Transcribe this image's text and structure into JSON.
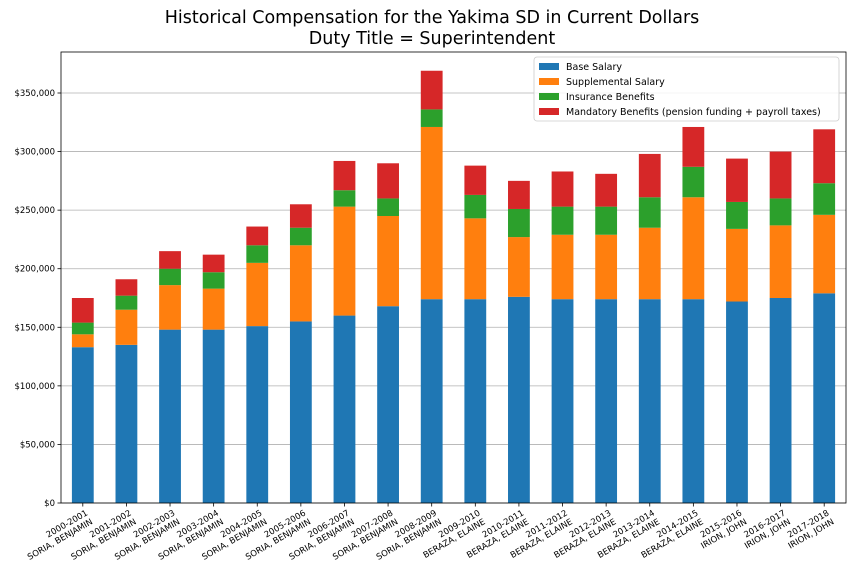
{
  "chart_data": {
    "type": "bar",
    "stacked": true,
    "title": "Historical Compensation for the Yakima SD in Current Dollars",
    "subtitle": "Duty Title = Superintendent",
    "xlabel": "",
    "ylabel": "",
    "ylim": [
      0,
      385000
    ],
    "yticks": [
      0,
      50000,
      100000,
      150000,
      200000,
      250000,
      300000,
      350000
    ],
    "ytick_labels": [
      "$0",
      "$50,000",
      "$100,000",
      "$150,000",
      "$200,000",
      "$250,000",
      "$300,000",
      "$350,000"
    ],
    "grid": "horizontal",
    "legend_position": "top-right",
    "categories": [
      [
        "2000-2001",
        "SORIA, BENJAMIN"
      ],
      [
        "2001-2002",
        "SORIA, BENJAMIN"
      ],
      [
        "2002-2003",
        "SORIA, BENJAMIN"
      ],
      [
        "2003-2004",
        "SORIA, BENJAMIN"
      ],
      [
        "2004-2005",
        "SORIA, BENJAMIN"
      ],
      [
        "2005-2006",
        "SORIA, BENJAMIN"
      ],
      [
        "2006-2007",
        "SORIA, BENJAMIN"
      ],
      [
        "2007-2008",
        "SORIA, BENJAMIN"
      ],
      [
        "2008-2009",
        "SORIA, BENJAMIN"
      ],
      [
        "2009-2010",
        "BERAZA, ELAINE"
      ],
      [
        "2010-2011",
        "BERAZA, ELAINE"
      ],
      [
        "2011-2012",
        "BERAZA, ELAINE"
      ],
      [
        "2012-2013",
        "BERAZA, ELAINE"
      ],
      [
        "2013-2014",
        "BERAZA, ELAINE"
      ],
      [
        "2014-2015",
        "BERAZA, ELAINE"
      ],
      [
        "2015-2016",
        "IRION, JOHN"
      ],
      [
        "2016-2017",
        "IRION, JOHN"
      ],
      [
        "2017-2018",
        "IRION, JOHN"
      ]
    ],
    "series": [
      {
        "name": "Base Salary",
        "color": "#1f77b4",
        "values": [
          133000,
          135000,
          148000,
          148000,
          151000,
          155000,
          160000,
          168000,
          174000,
          174000,
          176000,
          174000,
          174000,
          174000,
          174000,
          172000,
          175000,
          179000
        ]
      },
      {
        "name": "Supplemental Salary",
        "color": "#ff7f0e",
        "values": [
          11000,
          30000,
          38000,
          35000,
          54000,
          65000,
          93000,
          77000,
          147000,
          69000,
          51000,
          55000,
          55000,
          61000,
          87000,
          62000,
          62000,
          67000
        ]
      },
      {
        "name": "Insurance Benefits",
        "color": "#2ca02c",
        "values": [
          10000,
          12000,
          14000,
          14000,
          15000,
          15000,
          14000,
          15000,
          15000,
          20000,
          24000,
          24000,
          24000,
          26000,
          26000,
          23000,
          23000,
          27000
        ]
      },
      {
        "name": "Mandatory Benefits (pension funding + payroll taxes)",
        "color": "#d62728",
        "values": [
          21000,
          14000,
          15000,
          15000,
          16000,
          20000,
          25000,
          30000,
          33000,
          25000,
          24000,
          30000,
          28000,
          37000,
          34000,
          37000,
          40000,
          46000
        ]
      }
    ]
  }
}
